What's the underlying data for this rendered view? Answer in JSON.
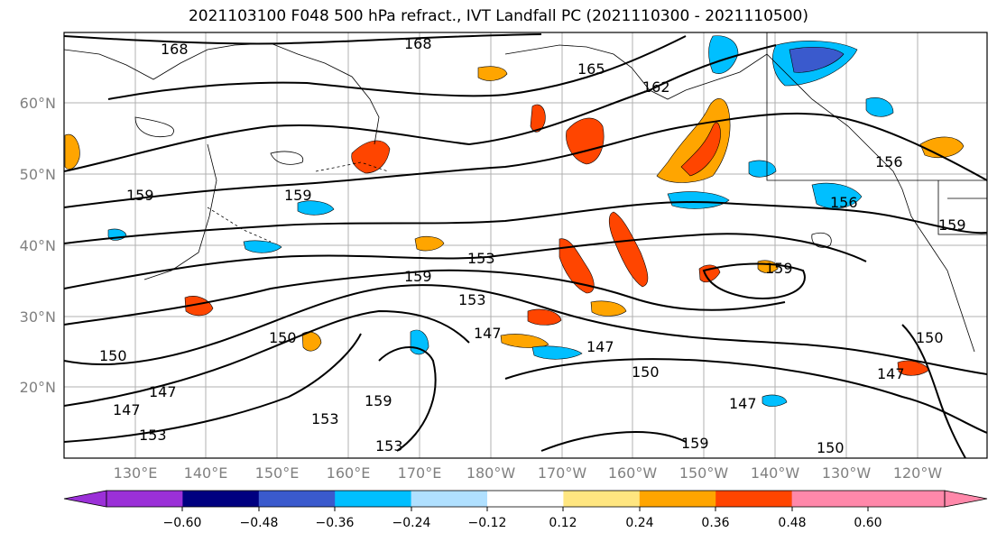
{
  "title": "2021103100 F048 500 hPa refract., IVT Landfall PC (2021110300 - 2021110500)",
  "map": {
    "lat_labels": [
      "60°N",
      "50°N",
      "40°N",
      "30°N",
      "20°N"
    ],
    "lon_labels": [
      "130°E",
      "140°E",
      "150°E",
      "160°E",
      "170°E",
      "180°W",
      "170°W",
      "160°W",
      "150°W",
      "140°W",
      "130°W",
      "120°W"
    ],
    "contour_labels": [
      "168",
      "168",
      "165",
      "162",
      "159",
      "159",
      "159",
      "159",
      "156",
      "156",
      "153",
      "153",
      "153",
      "150",
      "150",
      "150",
      "150",
      "147",
      "147",
      "147",
      "147",
      "147",
      "147",
      "150",
      "153",
      "153",
      "159",
      "159",
      "159"
    ]
  },
  "colorbar": {
    "tick_labels": [
      "−0.60",
      "−0.48",
      "−0.36",
      "−0.24",
      "−0.12",
      "0.12",
      "0.24",
      "0.36",
      "0.48",
      "0.60"
    ],
    "colors": [
      "#9b30d8",
      "#000080",
      "#3a5acd",
      "#00bfff",
      "#b0e0ff",
      "#ffffff",
      "#ffe680",
      "#ffa500",
      "#ff4500",
      "#b22222",
      "#ff88aa"
    ]
  }
}
